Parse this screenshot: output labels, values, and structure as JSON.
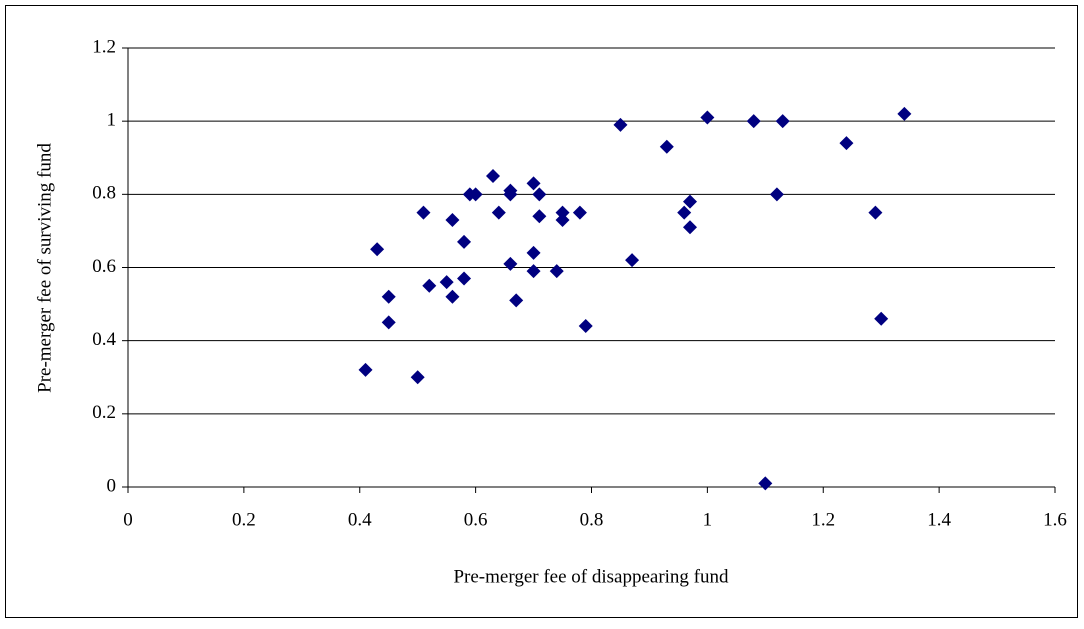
{
  "chart_data": {
    "type": "scatter",
    "x_label": "Pre-merger fee of disappearing fund",
    "y_label": "Pre-merger fee of surviving fund",
    "x": [
      0.41,
      0.43,
      0.45,
      0.45,
      0.5,
      0.51,
      0.52,
      0.55,
      0.56,
      0.56,
      0.58,
      0.58,
      0.59,
      0.6,
      0.63,
      0.64,
      0.66,
      0.66,
      0.66,
      0.67,
      0.7,
      0.7,
      0.7,
      0.71,
      0.71,
      0.74,
      0.75,
      0.75,
      0.78,
      0.79,
      0.85,
      0.87,
      0.93,
      0.96,
      0.97,
      0.97,
      1.0,
      1.08,
      1.1,
      1.12,
      1.13,
      1.24,
      1.29,
      1.3,
      1.34
    ],
    "values": [
      0.32,
      0.65,
      0.52,
      0.45,
      0.3,
      0.75,
      0.55,
      0.56,
      0.73,
      0.52,
      0.67,
      0.57,
      0.8,
      0.8,
      0.85,
      0.75,
      0.81,
      0.8,
      0.61,
      0.51,
      0.83,
      0.64,
      0.59,
      0.8,
      0.74,
      0.59,
      0.75,
      0.73,
      0.75,
      0.44,
      0.99,
      0.62,
      0.93,
      0.75,
      0.78,
      0.71,
      1.01,
      1.0,
      0.01,
      0.8,
      1.0,
      0.94,
      0.75,
      0.46,
      1.02
    ],
    "color": "#000080",
    "xlim": [
      0,
      1.6
    ],
    "xticks": [
      0,
      0.2,
      0.4,
      0.6,
      0.8,
      1,
      1.2,
      1.4,
      1.6
    ],
    "ylim": [
      0,
      1.2
    ],
    "yticks": [
      0,
      0.2,
      0.4,
      0.6,
      0.8,
      1,
      1.2
    ],
    "grid": true
  }
}
